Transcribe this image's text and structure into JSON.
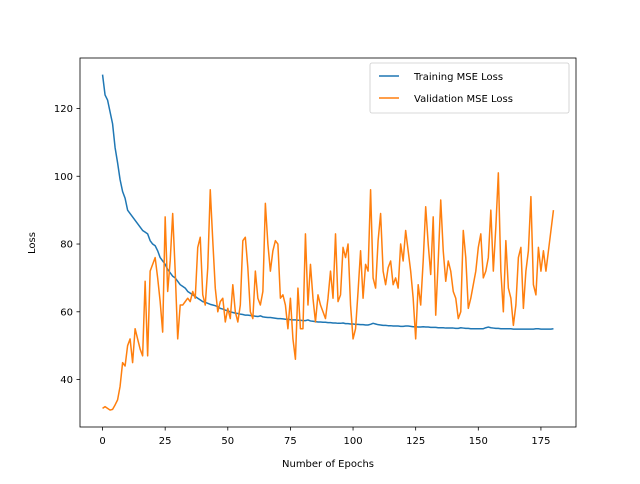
{
  "chart_data": {
    "type": "line",
    "x_label": "Number of Epochs",
    "y_label": "Loss",
    "x": [
      0,
      1,
      2,
      3,
      4,
      5,
      6,
      7,
      8,
      9,
      10,
      11,
      12,
      13,
      14,
      15,
      16,
      17,
      18,
      19,
      20,
      21,
      22,
      23,
      24,
      25,
      26,
      27,
      28,
      29,
      30,
      31,
      32,
      33,
      34,
      35,
      36,
      37,
      38,
      39,
      40,
      41,
      42,
      43,
      44,
      45,
      46,
      47,
      48,
      49,
      50,
      51,
      52,
      53,
      54,
      55,
      56,
      57,
      58,
      59,
      60,
      61,
      62,
      63,
      64,
      65,
      66,
      67,
      68,
      69,
      70,
      71,
      72,
      73,
      74,
      75,
      76,
      77,
      78,
      79,
      80,
      81,
      82,
      83,
      84,
      85,
      86,
      87,
      88,
      89,
      90,
      91,
      92,
      93,
      94,
      95,
      96,
      97,
      98,
      99,
      100,
      101,
      102,
      103,
      104,
      105,
      106,
      107,
      108,
      109,
      110,
      111,
      112,
      113,
      114,
      115,
      116,
      117,
      118,
      119,
      120,
      121,
      122,
      123,
      124,
      125,
      126,
      127,
      128,
      129,
      130,
      131,
      132,
      133,
      134,
      135,
      136,
      137,
      138,
      139,
      140,
      141,
      142,
      143,
      144,
      145,
      146,
      147,
      148,
      149,
      150,
      151,
      152,
      153,
      154,
      155,
      156,
      157,
      158,
      159,
      160,
      161,
      162,
      163,
      164,
      165,
      166,
      167,
      168,
      169,
      170,
      171,
      172,
      173,
      174,
      175,
      176,
      177,
      178,
      179,
      180
    ],
    "series": [
      {
        "name": "Training MSE Loss",
        "color": "#1f77b4",
        "values": [
          130,
          124,
          122.5,
          119,
          115.5,
          108.5,
          104,
          99,
          95.5,
          93.5,
          90,
          89,
          88,
          87,
          86,
          85,
          84,
          83.5,
          83,
          81,
          80,
          79.5,
          78,
          76,
          75,
          74,
          72.5,
          71.5,
          70.5,
          70,
          69,
          68,
          67.5,
          67,
          66,
          65.5,
          65,
          64.5,
          64,
          63.5,
          63,
          62.8,
          62.5,
          62.2,
          62,
          61.8,
          61.5,
          61,
          60.8,
          60.5,
          60.3,
          60,
          59.8,
          59.6,
          59.5,
          59.3,
          59.2,
          59,
          59,
          58.9,
          58.8,
          58.7,
          58.6,
          58.8,
          58.5,
          58.4,
          58.3,
          58.3,
          58.2,
          58.1,
          58,
          58,
          57.9,
          57.8,
          57.8,
          57.7,
          57.6,
          57.6,
          57.5,
          57.5,
          57.4,
          57.4,
          57.6,
          57.3,
          57.2,
          57.1,
          57,
          57,
          56.9,
          56.9,
          56.8,
          56.8,
          56.7,
          56.7,
          56.6,
          56.6,
          56.7,
          56.5,
          56.5,
          56.4,
          56.4,
          56.3,
          56.3,
          56.2,
          56.2,
          56.1,
          56.1,
          56.3,
          56.6,
          56.4,
          56.2,
          56.1,
          56,
          56,
          55.9,
          55.9,
          55.8,
          55.8,
          55.8,
          55.7,
          55.7,
          55.8,
          55.8,
          55.7,
          55.6,
          55.6,
          55.5,
          55.5,
          55.6,
          55.5,
          55.5,
          55.4,
          55.4,
          55.4,
          55.3,
          55.3,
          55.3,
          55.2,
          55.2,
          55.2,
          55.2,
          55.1,
          55.1,
          55.3,
          55.2,
          55.1,
          55.1,
          55,
          55,
          55,
          55,
          55,
          55,
          55.3,
          55.5,
          55.3,
          55.2,
          55.1,
          55.1,
          55,
          55,
          55,
          55,
          55,
          54.9,
          54.9,
          54.9,
          54.9,
          54.9,
          54.9,
          54.9,
          54.9,
          54.9,
          55,
          55,
          54.9,
          54.9,
          54.9,
          54.9,
          54.9,
          55
        ]
      },
      {
        "name": "Validation MSE Loss",
        "color": "#ff7f0e",
        "values": [
          31.5,
          32,
          31.5,
          31,
          31.2,
          32.5,
          34,
          38,
          45,
          44,
          50,
          52,
          45,
          55,
          52,
          49,
          47,
          69,
          47,
          72,
          74,
          76,
          70,
          63,
          54,
          88,
          66,
          75,
          89,
          72,
          52,
          62,
          62,
          63,
          64,
          63,
          66,
          64,
          79,
          82,
          65,
          62,
          73,
          96,
          81,
          67,
          60,
          63,
          64,
          57,
          61,
          58,
          68,
          60,
          57,
          62,
          81,
          82,
          73,
          60,
          58,
          72,
          64,
          62,
          66,
          92,
          80,
          72,
          78,
          81,
          80,
          64,
          65,
          62,
          55,
          64,
          52,
          46,
          67,
          55,
          55,
          83,
          62,
          74,
          64,
          57,
          65,
          62,
          60,
          58,
          64,
          72,
          64,
          83,
          63,
          65,
          79,
          76,
          80,
          62,
          52,
          55,
          66,
          78,
          64,
          74,
          72,
          96,
          70,
          67,
          81,
          89,
          72,
          68,
          73,
          75,
          68,
          70,
          67,
          80,
          75,
          84,
          78,
          72,
          64,
          52,
          68,
          62,
          75,
          91,
          80,
          71,
          88,
          59,
          75,
          93,
          78,
          69,
          75,
          72,
          66,
          64,
          58,
          60,
          84,
          76,
          61,
          64,
          68,
          72,
          79,
          83,
          70,
          72,
          76,
          90,
          72,
          85,
          101,
          72,
          60,
          81,
          67,
          64,
          56,
          62,
          76,
          79,
          61,
          72,
          78,
          94,
          68,
          65,
          79,
          72,
          78,
          72,
          78,
          84,
          90
        ]
      }
    ],
    "xlim": [
      -9,
      189
    ],
    "ylim": [
      26.0,
      134.9
    ],
    "xticks": [
      0,
      25,
      50,
      75,
      100,
      125,
      150,
      175
    ],
    "yticks": [
      40,
      60,
      80,
      100,
      120
    ],
    "legend": "upper right"
  }
}
